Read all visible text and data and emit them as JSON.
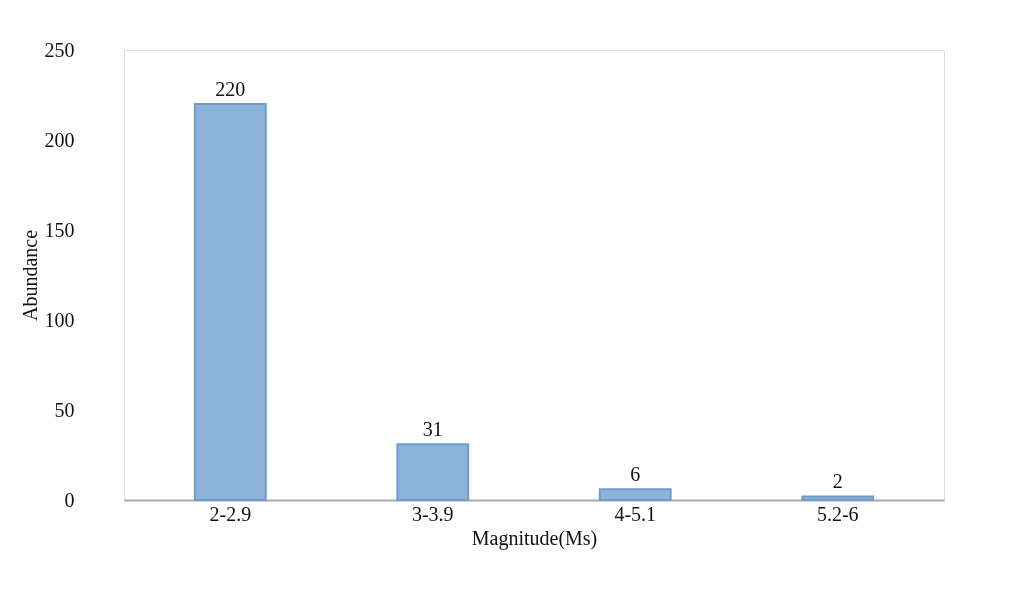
{
  "chart_data": {
    "type": "bar",
    "xlabel": "Magnitude(Ms)",
    "ylabel": "Abundance",
    "categories": [
      "2-2.9",
      "3-3.9",
      "4-5.1",
      "5.2-6"
    ],
    "values": [
      220,
      31,
      6,
      2
    ],
    "color": "#8db3db",
    "ylim": [
      0,
      250
    ],
    "yticks": [
      0,
      50,
      100,
      150,
      200,
      250
    ],
    "grid": false,
    "data_labels": true
  }
}
